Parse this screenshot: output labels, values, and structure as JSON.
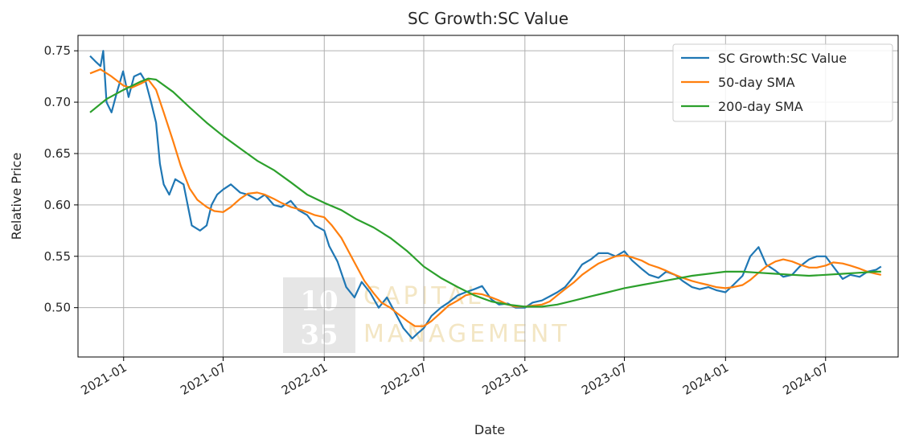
{
  "chart_data": {
    "type": "line",
    "title": "SC Growth:SC Value",
    "xlabel": "Date",
    "ylabel": "Relative Price",
    "xlim": [
      "2020-10-10",
      "2024-11-10"
    ],
    "ylim": [
      0.452,
      0.765
    ],
    "x_ticks": [
      "2021-01",
      "2021-07",
      "2022-01",
      "2022-07",
      "2023-01",
      "2023-07",
      "2024-01",
      "2024-07"
    ],
    "y_ticks": [
      0.5,
      0.55,
      0.6,
      0.65,
      0.7,
      0.75
    ],
    "y_tick_labels": [
      "0.50",
      "0.55",
      "0.60",
      "0.65",
      "0.70",
      "0.75"
    ],
    "grid": true,
    "legend_position": "top-right",
    "series": [
      {
        "name": "SC Growth:SC Value",
        "color": "#1f77b4",
        "x": [
          "2020-11-01",
          "2020-11-10",
          "2020-11-20",
          "2020-11-25",
          "2020-12-01",
          "2020-12-10",
          "2020-12-20",
          "2020-12-31",
          "2021-01-10",
          "2021-01-20",
          "2021-02-01",
          "2021-02-10",
          "2021-02-20",
          "2021-03-01",
          "2021-03-08",
          "2021-03-15",
          "2021-03-25",
          "2021-04-05",
          "2021-04-20",
          "2021-05-05",
          "2021-05-20",
          "2021-06-01",
          "2021-06-10",
          "2021-06-20",
          "2021-07-01",
          "2021-07-15",
          "2021-08-01",
          "2021-08-15",
          "2021-09-01",
          "2021-09-15",
          "2021-10-01",
          "2021-10-15",
          "2021-11-01",
          "2021-11-15",
          "2021-12-01",
          "2021-12-15",
          "2022-01-01",
          "2022-01-10",
          "2022-01-25",
          "2022-02-10",
          "2022-02-25",
          "2022-03-10",
          "2022-03-25",
          "2022-04-10",
          "2022-04-25",
          "2022-05-10",
          "2022-05-25",
          "2022-06-10",
          "2022-06-20",
          "2022-07-01",
          "2022-07-15",
          "2022-08-01",
          "2022-08-15",
          "2022-09-01",
          "2022-09-15",
          "2022-10-01",
          "2022-10-15",
          "2022-11-01",
          "2022-11-15",
          "2022-12-01",
          "2022-12-15",
          "2023-01-01",
          "2023-01-15",
          "2023-02-01",
          "2023-02-15",
          "2023-03-01",
          "2023-03-15",
          "2023-04-01",
          "2023-04-15",
          "2023-05-01",
          "2023-05-15",
          "2023-06-01",
          "2023-06-15",
          "2023-07-01",
          "2023-07-15",
          "2023-08-01",
          "2023-08-15",
          "2023-09-01",
          "2023-09-15",
          "2023-10-01",
          "2023-10-15",
          "2023-11-01",
          "2023-11-15",
          "2023-12-01",
          "2023-12-15",
          "2024-01-01",
          "2024-01-15",
          "2024-02-01",
          "2024-02-15",
          "2024-03-01",
          "2024-03-15",
          "2024-04-01",
          "2024-04-15",
          "2024-05-01",
          "2024-05-15",
          "2024-06-01",
          "2024-06-15",
          "2024-07-01",
          "2024-07-15",
          "2024-08-01",
          "2024-08-15",
          "2024-09-01",
          "2024-09-15",
          "2024-10-01",
          "2024-10-10"
        ],
        "y": [
          0.745,
          0.74,
          0.735,
          0.75,
          0.7,
          0.69,
          0.71,
          0.73,
          0.705,
          0.725,
          0.728,
          0.72,
          0.7,
          0.68,
          0.64,
          0.62,
          0.61,
          0.625,
          0.62,
          0.58,
          0.575,
          0.58,
          0.6,
          0.61,
          0.615,
          0.62,
          0.612,
          0.61,
          0.605,
          0.61,
          0.6,
          0.598,
          0.604,
          0.595,
          0.59,
          0.58,
          0.575,
          0.56,
          0.545,
          0.52,
          0.51,
          0.525,
          0.515,
          0.5,
          0.51,
          0.495,
          0.48,
          0.47,
          0.475,
          0.48,
          0.492,
          0.5,
          0.505,
          0.512,
          0.515,
          0.518,
          0.521,
          0.508,
          0.503,
          0.504,
          0.5,
          0.5,
          0.505,
          0.507,
          0.511,
          0.515,
          0.52,
          0.531,
          0.542,
          0.547,
          0.553,
          0.553,
          0.55,
          0.555,
          0.546,
          0.538,
          0.532,
          0.529,
          0.535,
          0.532,
          0.526,
          0.52,
          0.518,
          0.52,
          0.517,
          0.515,
          0.522,
          0.531,
          0.55,
          0.559,
          0.542,
          0.536,
          0.53,
          0.532,
          0.54,
          0.547,
          0.55,
          0.55,
          0.54,
          0.528,
          0.532,
          0.53,
          0.535,
          0.537,
          0.54
        ]
      },
      {
        "name": "50-day SMA",
        "color": "#ff7f0e",
        "x": [
          "2020-11-01",
          "2020-11-20",
          "2020-12-10",
          "2021-01-01",
          "2021-01-15",
          "2021-02-01",
          "2021-02-15",
          "2021-03-01",
          "2021-03-15",
          "2021-04-01",
          "2021-04-15",
          "2021-05-01",
          "2021-05-15",
          "2021-06-01",
          "2021-06-15",
          "2021-07-01",
          "2021-07-15",
          "2021-08-01",
          "2021-08-15",
          "2021-09-01",
          "2021-09-15",
          "2021-10-01",
          "2021-10-15",
          "2021-11-01",
          "2021-11-15",
          "2021-12-01",
          "2021-12-15",
          "2022-01-01",
          "2022-01-15",
          "2022-02-01",
          "2022-02-15",
          "2022-03-01",
          "2022-03-15",
          "2022-04-01",
          "2022-04-15",
          "2022-05-01",
          "2022-05-15",
          "2022-06-01",
          "2022-06-15",
          "2022-07-01",
          "2022-07-15",
          "2022-08-01",
          "2022-08-15",
          "2022-09-01",
          "2022-09-15",
          "2022-10-01",
          "2022-10-15",
          "2022-11-01",
          "2022-11-15",
          "2022-12-01",
          "2022-12-15",
          "2023-01-01",
          "2023-01-15",
          "2023-02-01",
          "2023-02-15",
          "2023-03-01",
          "2023-03-15",
          "2023-04-01",
          "2023-04-15",
          "2023-05-01",
          "2023-05-15",
          "2023-06-01",
          "2023-06-15",
          "2023-07-01",
          "2023-07-15",
          "2023-08-01",
          "2023-08-15",
          "2023-09-01",
          "2023-09-15",
          "2023-10-01",
          "2023-10-15",
          "2023-11-01",
          "2023-11-15",
          "2023-12-01",
          "2023-12-15",
          "2024-01-01",
          "2024-01-15",
          "2024-02-01",
          "2024-02-15",
          "2024-03-01",
          "2024-03-15",
          "2024-04-01",
          "2024-04-15",
          "2024-05-01",
          "2024-05-15",
          "2024-06-01",
          "2024-06-15",
          "2024-07-01",
          "2024-07-15",
          "2024-08-01",
          "2024-08-15",
          "2024-09-01",
          "2024-09-15",
          "2024-10-01",
          "2024-10-10"
        ],
        "y": [
          0.728,
          0.732,
          0.725,
          0.716,
          0.714,
          0.718,
          0.722,
          0.712,
          0.69,
          0.662,
          0.638,
          0.616,
          0.605,
          0.598,
          0.594,
          0.593,
          0.598,
          0.606,
          0.611,
          0.612,
          0.61,
          0.606,
          0.602,
          0.598,
          0.596,
          0.593,
          0.59,
          0.588,
          0.58,
          0.568,
          0.554,
          0.54,
          0.526,
          0.514,
          0.505,
          0.5,
          0.494,
          0.487,
          0.482,
          0.482,
          0.487,
          0.495,
          0.502,
          0.507,
          0.512,
          0.514,
          0.513,
          0.51,
          0.507,
          0.503,
          0.501,
          0.501,
          0.502,
          0.503,
          0.506,
          0.512,
          0.518,
          0.525,
          0.532,
          0.538,
          0.543,
          0.547,
          0.55,
          0.551,
          0.549,
          0.546,
          0.542,
          0.539,
          0.536,
          0.532,
          0.529,
          0.526,
          0.524,
          0.522,
          0.52,
          0.519,
          0.52,
          0.522,
          0.527,
          0.534,
          0.54,
          0.545,
          0.547,
          0.545,
          0.542,
          0.539,
          0.539,
          0.541,
          0.544,
          0.543,
          0.541,
          0.538,
          0.535,
          0.533,
          0.532
        ]
      },
      {
        "name": "200-day SMA",
        "color": "#2ca02c",
        "x": [
          "2020-11-01",
          "2020-12-01",
          "2021-01-01",
          "2021-02-01",
          "2021-02-15",
          "2021-03-01",
          "2021-04-01",
          "2021-05-01",
          "2021-06-01",
          "2021-07-01",
          "2021-08-01",
          "2021-09-01",
          "2021-10-01",
          "2021-11-01",
          "2021-12-01",
          "2022-01-01",
          "2022-02-01",
          "2022-03-01",
          "2022-04-01",
          "2022-05-01",
          "2022-06-01",
          "2022-07-01",
          "2022-08-01",
          "2022-09-01",
          "2022-10-01",
          "2022-11-01",
          "2022-12-01",
          "2023-01-01",
          "2023-02-01",
          "2023-03-01",
          "2023-04-01",
          "2023-05-01",
          "2023-06-01",
          "2023-07-01",
          "2023-08-01",
          "2023-09-01",
          "2023-10-01",
          "2023-11-01",
          "2023-12-01",
          "2024-01-01",
          "2024-02-01",
          "2024-03-01",
          "2024-04-01",
          "2024-05-01",
          "2024-06-01",
          "2024-07-01",
          "2024-08-01",
          "2024-09-01",
          "2024-10-01",
          "2024-10-10"
        ],
        "y": [
          0.69,
          0.703,
          0.712,
          0.72,
          0.723,
          0.722,
          0.71,
          0.695,
          0.68,
          0.667,
          0.655,
          0.643,
          0.634,
          0.622,
          0.61,
          0.602,
          0.595,
          0.586,
          0.578,
          0.568,
          0.555,
          0.54,
          0.529,
          0.52,
          0.512,
          0.506,
          0.503,
          0.501,
          0.501,
          0.503,
          0.507,
          0.511,
          0.515,
          0.519,
          0.522,
          0.525,
          0.528,
          0.531,
          0.533,
          0.535,
          0.535,
          0.534,
          0.533,
          0.532,
          0.531,
          0.532,
          0.533,
          0.534,
          0.535,
          0.535
        ]
      }
    ],
    "watermark": {
      "numbers": [
        "10",
        "35"
      ],
      "words": [
        "CAPITAL",
        "MANAGEMENT"
      ]
    }
  }
}
